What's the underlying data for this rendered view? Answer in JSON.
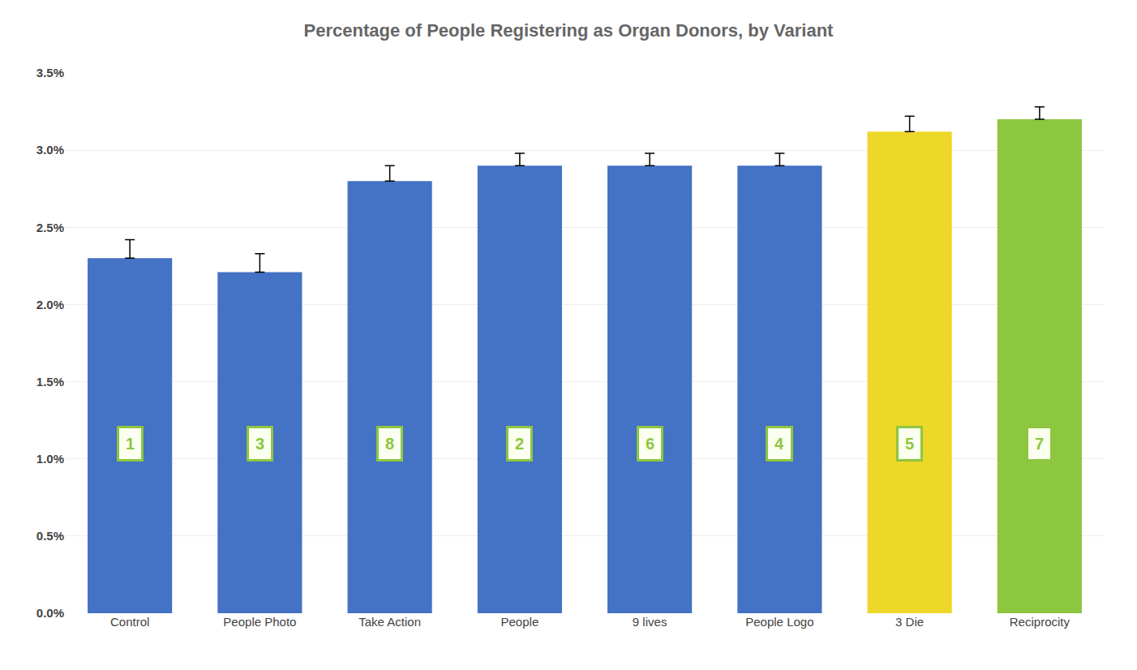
{
  "chart_data": {
    "type": "bar",
    "title": "Percentage of People Registering as Organ Donors, by Variant",
    "categories": [
      "Control",
      "People Photo",
      "Take Action",
      "People",
      "9 lives",
      "People Logo",
      "3 Die",
      "Reciprocity"
    ],
    "values": [
      0.023,
      0.0221,
      0.028,
      0.029,
      0.029,
      0.029,
      0.0312,
      0.032
    ],
    "errors": [
      0.0012,
      0.0012,
      0.001,
      0.0008,
      0.0008,
      0.0008,
      0.001,
      0.0008
    ],
    "colors": [
      "#4472C4",
      "#4472C4",
      "#4472C4",
      "#4472C4",
      "#4472C4",
      "#4472C4",
      "#EDD829",
      "#8DC63F"
    ],
    "annotations": [
      "1",
      "3",
      "8",
      "2",
      "6",
      "4",
      "5",
      "7"
    ],
    "ylim": [
      0.0,
      0.035
    ],
    "yticks": [
      {
        "value": 0.0,
        "label": "0.0%"
      },
      {
        "value": 0.005,
        "label": "0.5%"
      },
      {
        "value": 0.01,
        "label": "1.0%"
      },
      {
        "value": 0.015,
        "label": "1.5%"
      },
      {
        "value": 0.02,
        "label": "2.0%"
      },
      {
        "value": 0.025,
        "label": "2.5%"
      },
      {
        "value": 0.03,
        "label": "3.0%"
      },
      {
        "value": 0.035,
        "label": "3.5%"
      }
    ],
    "grid": true
  }
}
